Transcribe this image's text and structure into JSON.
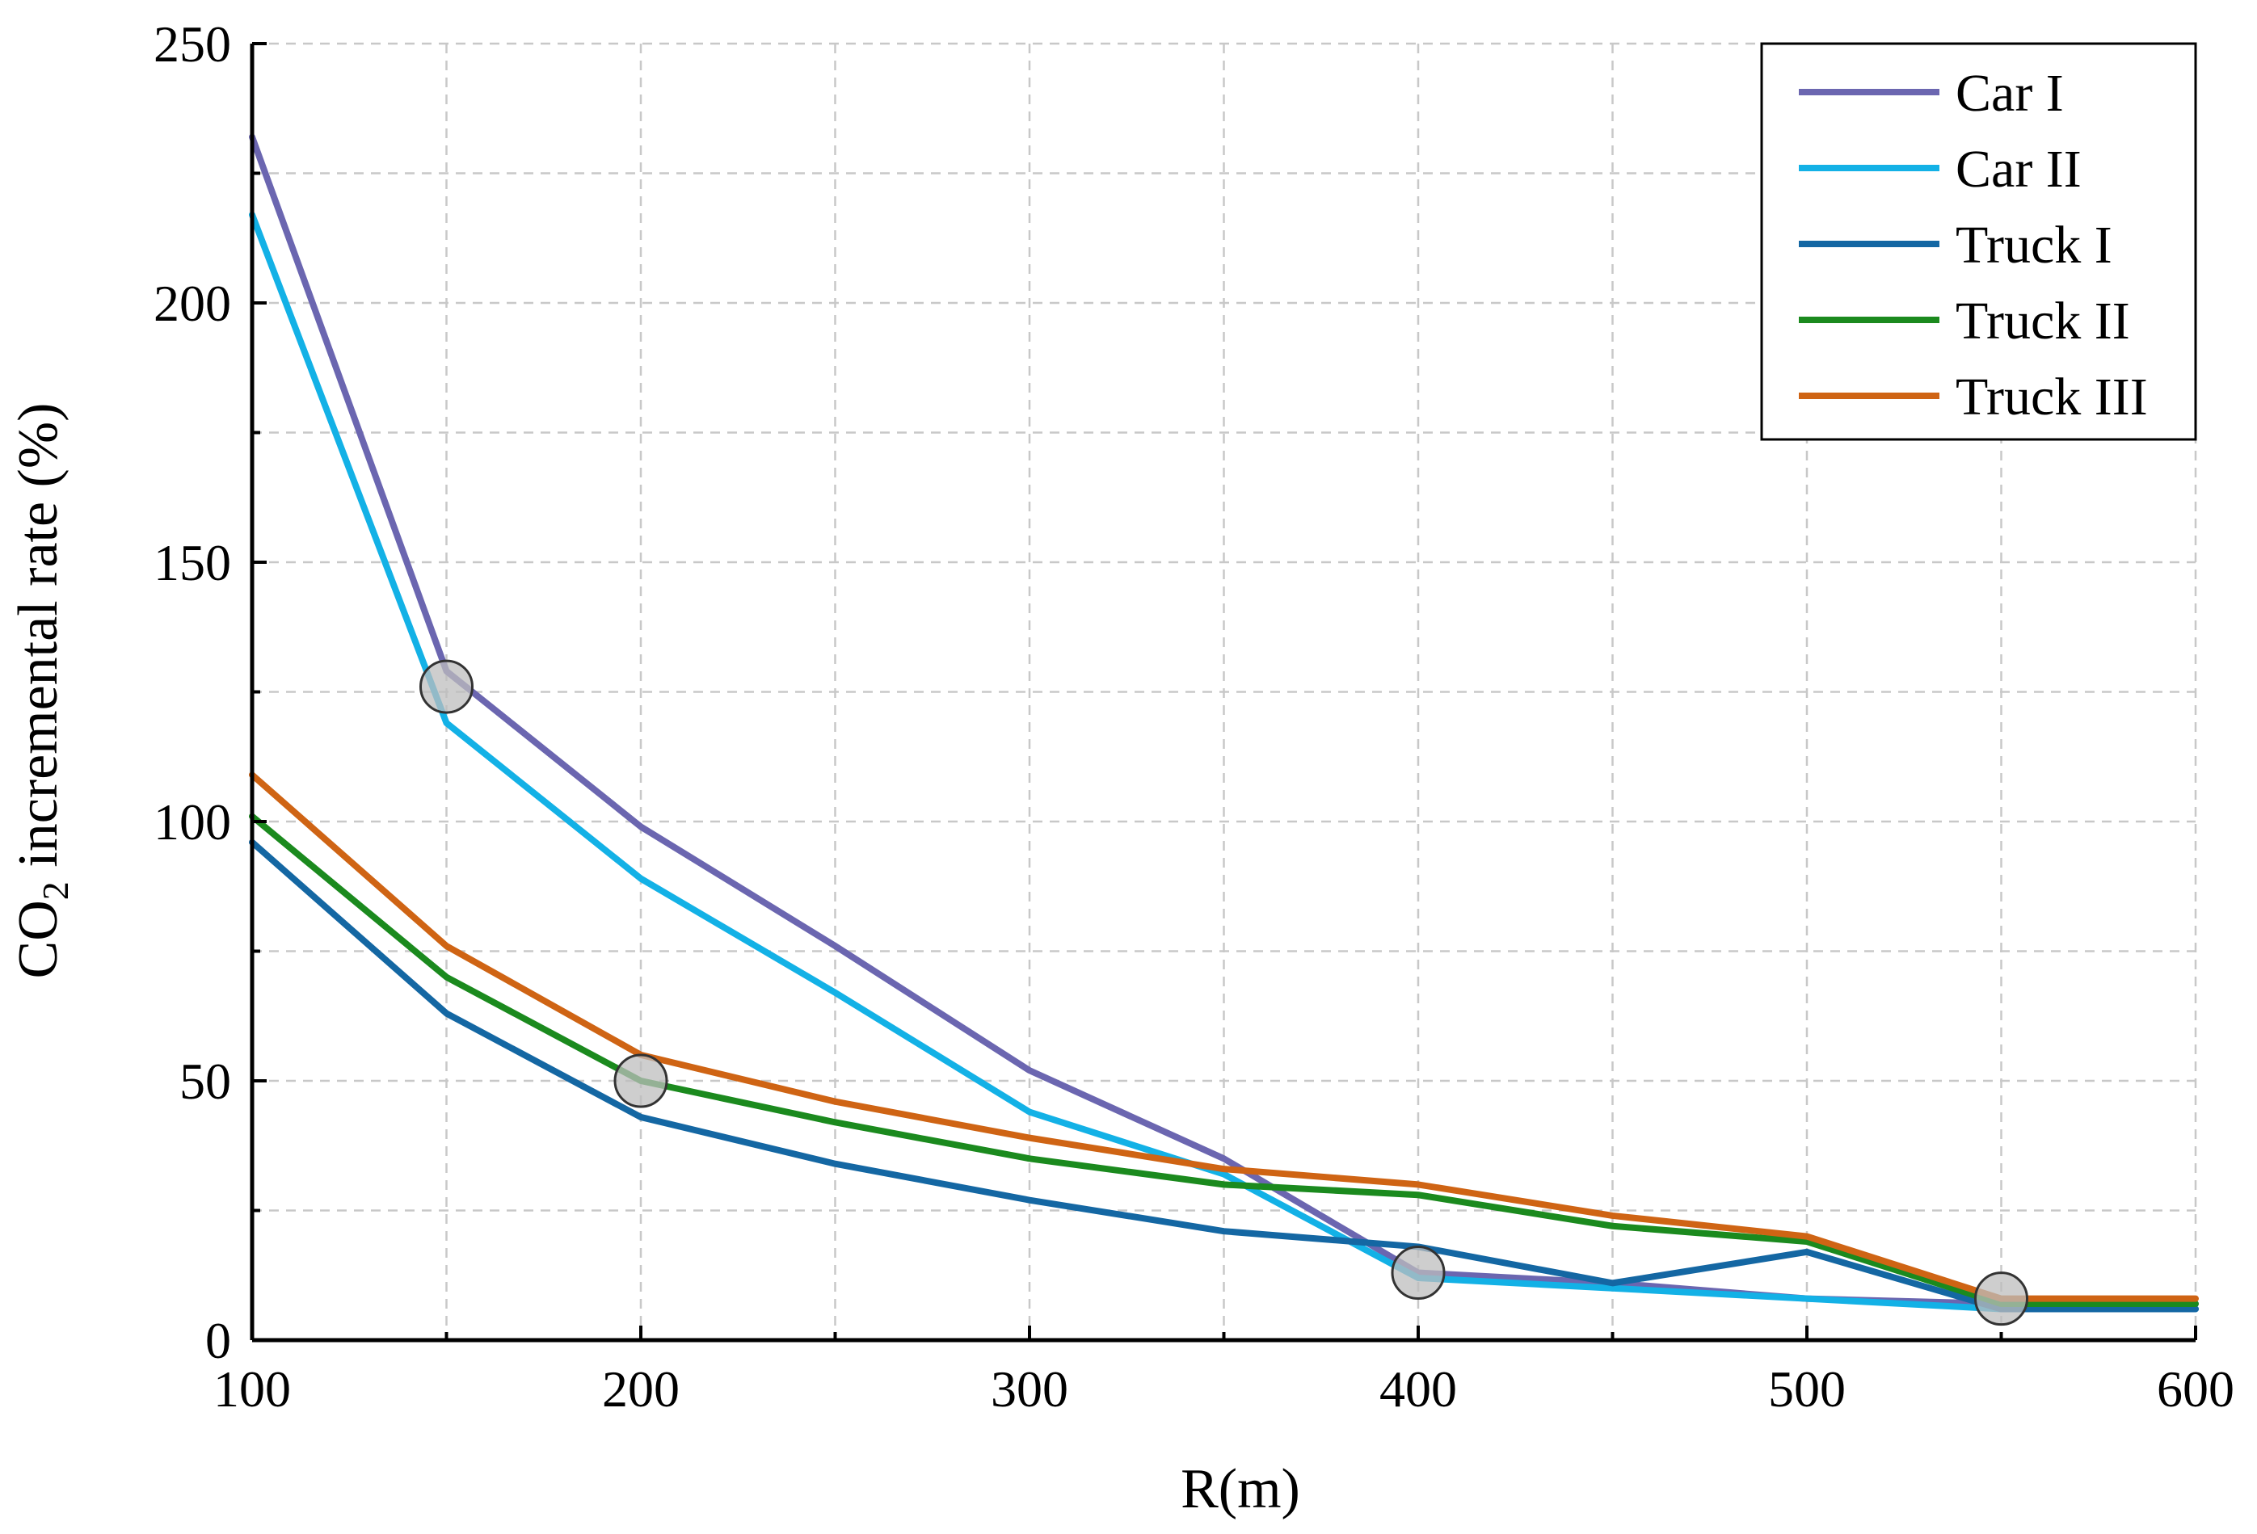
{
  "chart_data": {
    "type": "line",
    "title": "",
    "xlabel": "R(m)",
    "ylabel_main": "CO",
    "ylabel_sub": "2",
    "ylabel_rest": " incremental rate (%)",
    "xlim": [
      100,
      600
    ],
    "ylim": [
      0,
      250
    ],
    "x_ticks": [
      "100",
      "200",
      "300",
      "400",
      "500",
      "600"
    ],
    "x_tick_values": [
      100,
      200,
      300,
      400,
      500,
      600
    ],
    "x_minor_values": [
      150,
      250,
      350,
      450,
      550
    ],
    "y_ticks": [
      "0",
      "50",
      "100",
      "150",
      "200",
      "250"
    ],
    "y_tick_values": [
      0,
      50,
      100,
      150,
      200,
      250
    ],
    "y_minor_values": [
      25,
      75,
      125,
      175,
      225
    ],
    "grid": true,
    "legend_position": "top-right",
    "x": [
      100,
      150,
      200,
      250,
      300,
      350,
      400,
      450,
      500,
      550,
      600
    ],
    "series": [
      {
        "name": "Car I",
        "color": "#6b66b0",
        "values": [
          232,
          129,
          99,
          76,
          52,
          35,
          13,
          11,
          8,
          7,
          7
        ]
      },
      {
        "name": "Car II",
        "color": "#13b1e6",
        "values": [
          217,
          119,
          89,
          67,
          44,
          32,
          12,
          10,
          8,
          6,
          6
        ]
      },
      {
        "name": "Truck I",
        "color": "#1467a3",
        "values": [
          96,
          63,
          43,
          34,
          27,
          21,
          18,
          11,
          17,
          6,
          6
        ]
      },
      {
        "name": "Truck II",
        "color": "#1b8a1e",
        "values": [
          101,
          70,
          50,
          42,
          35,
          30,
          28,
          22,
          19,
          7,
          7
        ]
      },
      {
        "name": "Truck III",
        "color": "#cf6414",
        "values": [
          109,
          76,
          55,
          46,
          39,
          33,
          30,
          24,
          20,
          8,
          8
        ]
      }
    ],
    "highlight_points": [
      {
        "x": 150,
        "y": 126
      },
      {
        "x": 200,
        "y": 50
      },
      {
        "x": 400,
        "y": 13
      },
      {
        "x": 550,
        "y": 8
      }
    ]
  }
}
